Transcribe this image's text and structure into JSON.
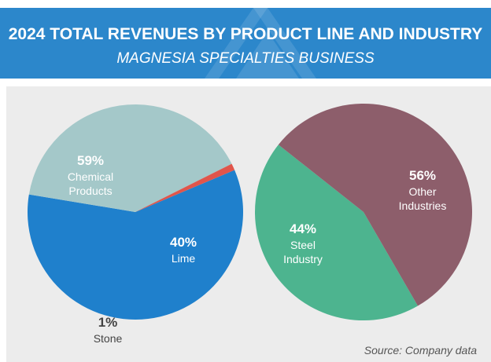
{
  "header": {
    "title": "2024 TOTAL REVENUES BY PRODUCT LINE AND INDUSTRY",
    "subtitle": "MAGNESIA SPECIALTIES BUSINESS"
  },
  "chart_data": [
    {
      "type": "pie",
      "categories": [
        "Chemical Products",
        "Lime",
        "Stone"
      ],
      "values": [
        59,
        40,
        1
      ],
      "value_labels": [
        "59%",
        "40%",
        "1%"
      ],
      "colors": [
        "#1f80cc",
        "#a4c8c9",
        "#e0554b"
      ]
    },
    {
      "type": "pie",
      "categories": [
        "Steel Industry",
        "Other Industries"
      ],
      "values": [
        44,
        56
      ],
      "value_labels": [
        "44%",
        "56%"
      ],
      "colors": [
        "#4db48f",
        "#8d5e6b"
      ]
    }
  ],
  "source": "Source: Company data"
}
